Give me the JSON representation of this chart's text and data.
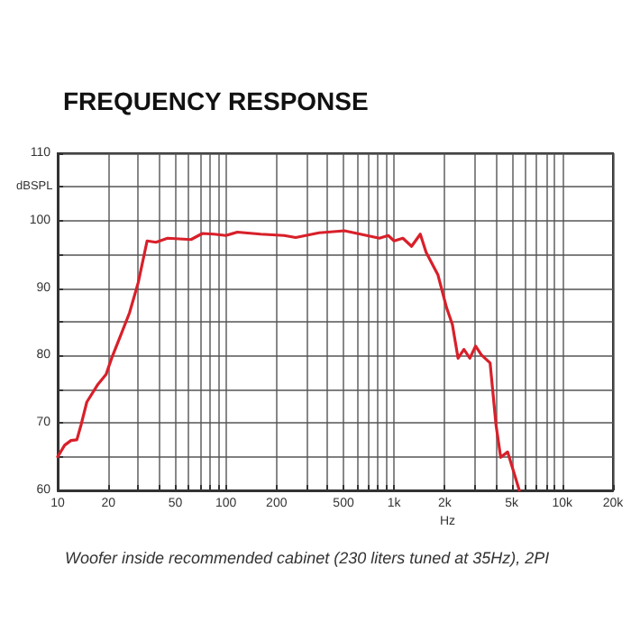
{
  "chart_data": {
    "type": "line",
    "title": "FREQUENCY RESPONSE",
    "xlabel": "Hz",
    "ylabel": "dBSPL",
    "annotations": [
      "Woofer inside recommended cabinet (230 liters tuned at 35Hz), 2PI"
    ],
    "log": "x",
    "grid": true,
    "marker": "none",
    "line_style": "solid",
    "xlim": [
      10,
      20000
    ],
    "ylim": [
      60,
      110
    ],
    "xticks": [
      10,
      20,
      {
        "value": 30,
        "label": null
      },
      {
        "value": 40,
        "label": null
      },
      50,
      {
        "value": 60,
        "label": null
      },
      {
        "value": 70,
        "label": null
      },
      {
        "value": 80,
        "label": null
      },
      {
        "value": 90,
        "label": null
      },
      100,
      200,
      {
        "value": 300,
        "label": null
      },
      {
        "value": 400,
        "label": null
      },
      500,
      {
        "value": 600,
        "label": null
      },
      {
        "value": 700,
        "label": null
      },
      {
        "value": 800,
        "label": null
      },
      {
        "value": 900,
        "label": null
      },
      {
        "value": 1000,
        "label": "1k"
      },
      {
        "value": 2000,
        "label": "2k"
      },
      {
        "value": 3000,
        "label": null
      },
      {
        "value": 4000,
        "label": null
      },
      {
        "value": 5000,
        "label": "5k"
      },
      {
        "value": 6000,
        "label": null
      },
      {
        "value": 7000,
        "label": null
      },
      {
        "value": 8000,
        "label": null
      },
      {
        "value": 9000,
        "label": null
      },
      {
        "value": 10000,
        "label": "10k"
      },
      {
        "value": 20000,
        "label": "20k"
      }
    ],
    "yticks": [
      60,
      {
        "value": 65,
        "label": null
      },
      70,
      {
        "value": 75,
        "label": null
      },
      80,
      {
        "value": 85,
        "label": null
      },
      90,
      {
        "value": 95,
        "label": null
      },
      100,
      {
        "value": 105,
        "label": null
      },
      110
    ],
    "x": [
      10,
      11,
      12,
      13,
      13.8,
      14.9,
      17.2,
      19.4,
      21,
      23.7,
      26.7,
      30.1,
      34,
      38.4,
      45,
      62,
      72.5,
      85,
      100,
      117,
      161,
      222,
      260,
      358,
      507,
      818,
      922,
      1000,
      1127,
      1270,
      1431,
      1550,
      1820,
      2050,
      2220,
      2400,
      2600,
      2820,
      3050,
      3300,
      3720,
      4030,
      4300,
      4730,
      5550
    ],
    "series": [
      {
        "color": "#d8202a",
        "values": [
          65,
          66.7,
          67.4,
          67.5,
          69.8,
          73.1,
          75.6,
          77.2,
          79.7,
          83,
          86.3,
          90.8,
          97,
          96.8,
          97.4,
          97.2,
          98.1,
          98,
          97.8,
          98.3,
          98,
          97.8,
          97.5,
          98.2,
          98.5,
          97.4,
          97.8,
          97,
          97.4,
          96.2,
          98,
          95.3,
          92,
          87.1,
          84.6,
          79.6,
          80.9,
          79.6,
          81.4,
          80.1,
          78.9,
          69.8,
          64.9,
          65.7,
          60
        ]
      }
    ]
  }
}
